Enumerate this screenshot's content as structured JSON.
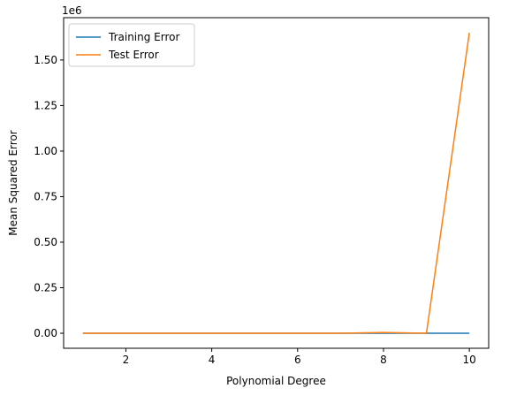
{
  "chart_data": {
    "type": "line",
    "title": "",
    "xlabel": "Polynomial Degree",
    "ylabel": "Mean Squared Error",
    "y_offset_label": "1e6",
    "xlim": [
      0.55,
      10.45
    ],
    "ylim": [
      -0.0825,
      1.7325
    ],
    "x_ticks": [
      2,
      4,
      6,
      8,
      10
    ],
    "x_tick_labels": [
      "2",
      "4",
      "6",
      "8",
      "10"
    ],
    "y_ticks": [
      0,
      0.25,
      0.5,
      0.75,
      1.0,
      1.25,
      1.5
    ],
    "y_tick_labels": [
      "0.00",
      "0.25",
      "0.50",
      "0.75",
      "1.00",
      "1.25",
      "1.50"
    ],
    "y_unit_scale": 1000000,
    "x": [
      1,
      2,
      3,
      4,
      5,
      6,
      7,
      8,
      9,
      10
    ],
    "series": [
      {
        "name": "Training Error",
        "color": "#1f77b4",
        "values": [
          0.0,
          0.0,
          0.0,
          0.0,
          0.0,
          0.0,
          0.0,
          0.0,
          0.0,
          0.0
        ]
      },
      {
        "name": "Test Error",
        "color": "#ff7f0e",
        "values": [
          0.0,
          0.0,
          0.0,
          0.0,
          0.0,
          0.0,
          0.0,
          0.004,
          0.0,
          1.65
        ]
      }
    ],
    "grid": false,
    "legend_position": "top-left"
  }
}
